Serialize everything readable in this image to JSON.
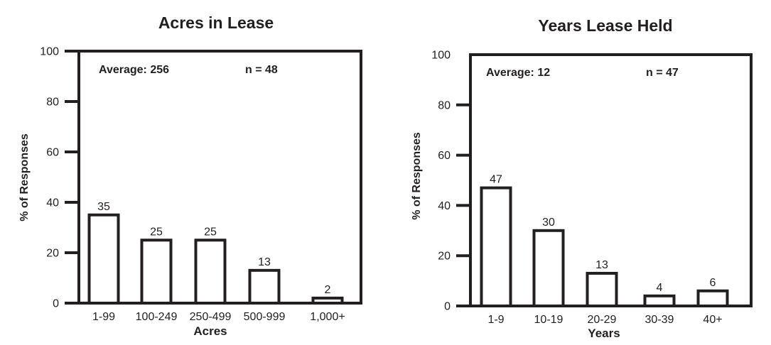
{
  "figure": {
    "background": "#ffffff",
    "ink_color": "#231f20"
  },
  "chart_data": [
    {
      "type": "bar",
      "title": "Acres in Lease",
      "categories": [
        "1-99",
        "100-249",
        "250-499",
        "500-999",
        "1,000+"
      ],
      "values": [
        35,
        25,
        25,
        13,
        2
      ],
      "value_labels": [
        "35",
        "25",
        "25",
        "13",
        "2"
      ],
      "xlabel": "Acres",
      "ylabel": "% of Responses",
      "ylim": [
        0,
        100
      ],
      "yticks": [
        0,
        20,
        40,
        60,
        80,
        100
      ],
      "annotations": {
        "average": "Average: 256",
        "n": "n = 48"
      },
      "grid": false,
      "legend": "none",
      "bar_fill": "#ffffff",
      "bar_border": "#231f20"
    },
    {
      "type": "bar",
      "title": "Years Lease Held",
      "categories": [
        "1-9",
        "10-19",
        "20-29",
        "30-39",
        "40+"
      ],
      "values": [
        47,
        30,
        13,
        4,
        6
      ],
      "value_labels": [
        "47",
        "30",
        "13",
        "4",
        "6"
      ],
      "xlabel": "Years",
      "ylabel": "% of Responses",
      "ylim": [
        0,
        100
      ],
      "yticks": [
        0,
        20,
        40,
        60,
        80,
        100
      ],
      "annotations": {
        "average": "Average: 12",
        "n": "n = 47"
      },
      "grid": false,
      "legend": "none",
      "bar_fill": "#ffffff",
      "bar_border": "#231f20"
    }
  ]
}
